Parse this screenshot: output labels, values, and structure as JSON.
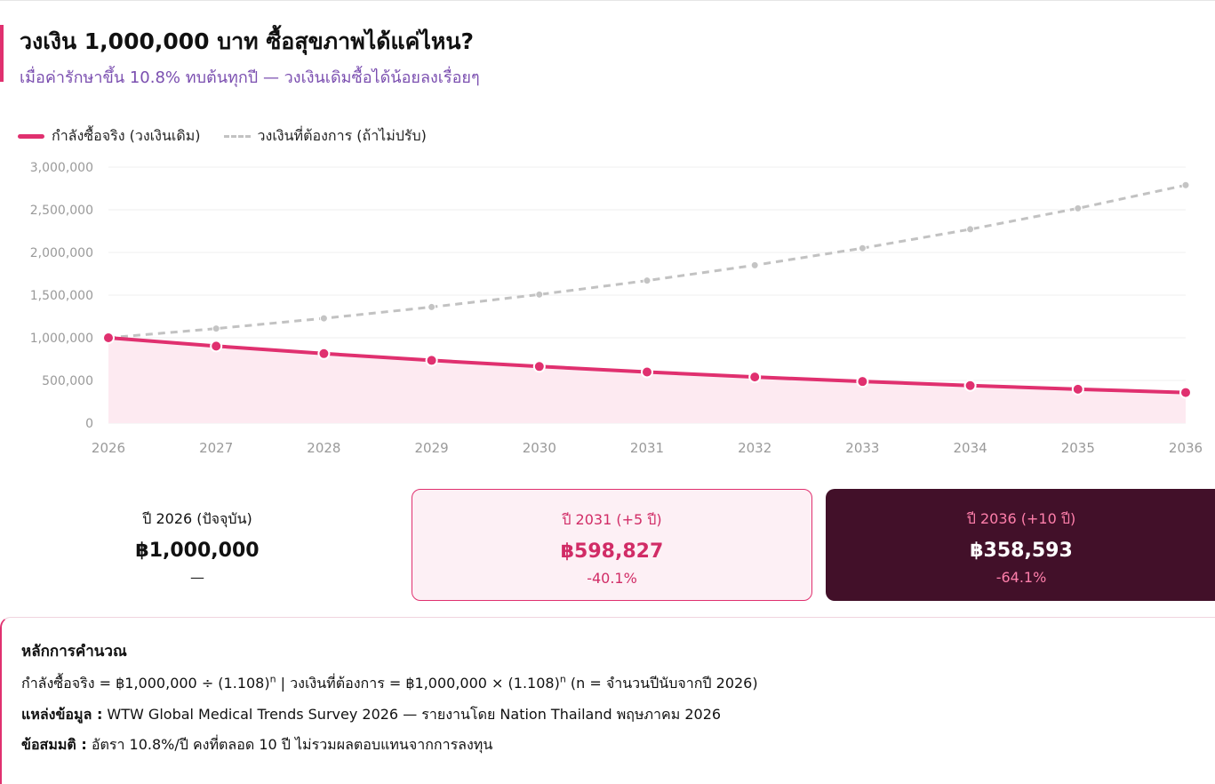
{
  "header": {
    "title": "วงเงิน 1,000,000 บาท ซื้อสุขภาพได้แค่ไหน?",
    "subtitle": "เมื่อค่ารักษาขึ้น 10.8% ทบต้นทุกปี — วงเงินเดิมซื้อได้น้อยลงเรื่อยๆ"
  },
  "colors": {
    "accent": "#e0306f",
    "dashed_series": "#c2c2c2",
    "subtitle": "#7b4fb0",
    "dark_card": "#421029"
  },
  "chart_data": {
    "type": "line",
    "x": [
      2026,
      2027,
      2028,
      2029,
      2030,
      2031,
      2032,
      2033,
      2034,
      2035,
      2036
    ],
    "series": [
      {
        "name": "กำลังซื้อจริง (วงเงินเดิม)",
        "style": "solid-area",
        "color": "#e0306f",
        "values": [
          1000000,
          902527,
          814555,
          735158,
          663500,
          598827,
          540458,
          487778,
          440233,
          397322,
          358593
        ]
      },
      {
        "name": "วงเงินที่ต้องการ (ถ้าไม่ปรับ)",
        "style": "dashed",
        "color": "#c2c2c2",
        "values": [
          1000000,
          1108000,
          1227664,
          1360252,
          1507160,
          1669933,
          1850286,
          2050117,
          2271530,
          2516855,
          2788675
        ]
      }
    ],
    "ylim": [
      0,
      3000000
    ],
    "yticks": [
      0,
      500000,
      1000000,
      1500000,
      2000000,
      2500000,
      3000000
    ],
    "ytick_labels": [
      "0",
      "500,000",
      "1,000,000",
      "1,500,000",
      "2,000,000",
      "2,500,000",
      "3,000,000"
    ],
    "grid": true,
    "legend_position": "top-left"
  },
  "cards": [
    {
      "label": "ปี 2026 (ปัจจุบัน)",
      "value": "฿1,000,000",
      "change": "—"
    },
    {
      "label": "ปี 2031 (+5 ปี)",
      "value": "฿598,827",
      "change": "-40.1%"
    },
    {
      "label": "ปี 2036 (+10 ปี)",
      "value": "฿358,593",
      "change": "-64.1%"
    }
  ],
  "notes": {
    "heading": "หลักการคำนวณ",
    "formula_left": "กำลังซื้อจริง = ฿1,000,000 ÷ (1.108)",
    "formula_sup1": "n",
    "formula_sep": " | ",
    "formula_right": "วงเงินที่ต้องการ = ฿1,000,000 × (1.108)",
    "formula_sup2": "n",
    "formula_tail": " (n = จำนวนปีนับจากปี 2026)",
    "source_label": "แหล่งข้อมูล :",
    "source_text": " WTW Global Medical Trends Survey 2026 — รายงานโดย Nation Thailand พฤษภาคม 2026",
    "assumption_label": "ข้อสมมติ :",
    "assumption_text": " อัตรา 10.8%/ปี คงที่ตลอด 10 ปี ไม่รวมผลตอบแทนจากการลงทุน"
  }
}
